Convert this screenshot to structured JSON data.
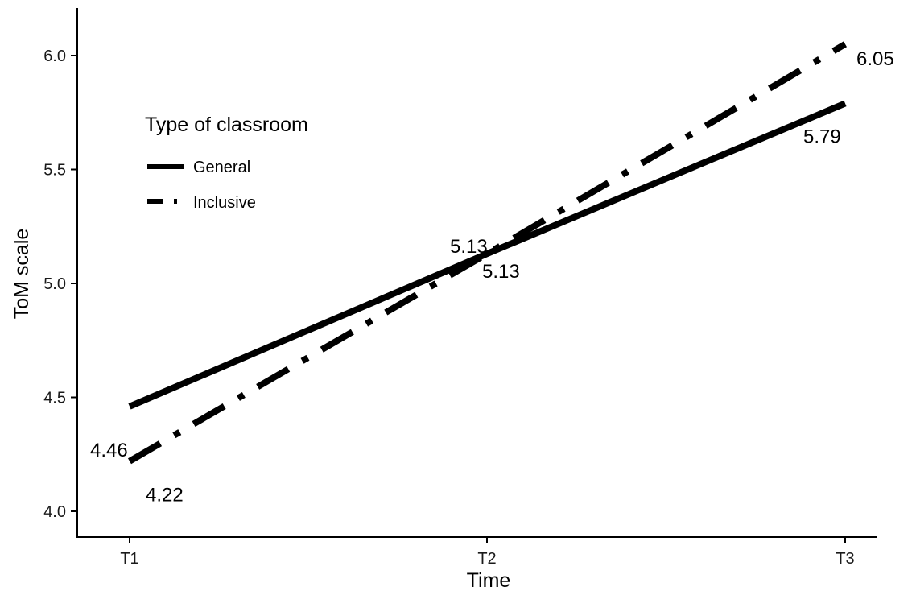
{
  "chart_data": {
    "type": "line",
    "categories": [
      "T1",
      "T2",
      "T3"
    ],
    "xlabel": "Time",
    "ylabel": "ToM scale",
    "ylim": [
      4.0,
      6.0
    ],
    "yticks": [
      "4.0",
      "4.5",
      "5.0",
      "5.5",
      "6.0"
    ],
    "grid": false,
    "legend": {
      "title": "Type of classroom",
      "position": "top-left"
    },
    "series": [
      {
        "name": "General",
        "style": "solid",
        "values": [
          4.46,
          5.13,
          5.79
        ],
        "labels": [
          "4.46",
          "5.13",
          "5.79"
        ],
        "color": "#000000"
      },
      {
        "name": "Inclusive",
        "style": "dashdot",
        "values": [
          4.22,
          5.13,
          6.05
        ],
        "labels": [
          "4.22",
          "5.13",
          "6.05"
        ],
        "color": "#000000"
      }
    ]
  }
}
